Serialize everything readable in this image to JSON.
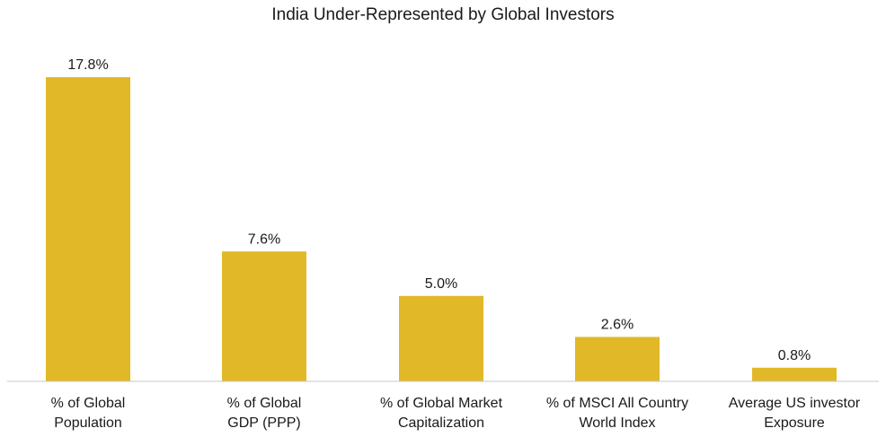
{
  "chart_data": {
    "type": "bar",
    "title": "India Under-Represented by Global Investors",
    "categories": [
      [
        "% of Global",
        "Population"
      ],
      [
        "% of Global",
        "GDP (PPP)"
      ],
      [
        "% of Global Market",
        "Capitalization"
      ],
      [
        "% of MSCI All Country",
        "World Index"
      ],
      [
        "Average US investor",
        "Exposure"
      ]
    ],
    "values": [
      17.8,
      7.6,
      5.0,
      2.6,
      0.8
    ],
    "value_labels": [
      "17.8%",
      "7.6%",
      "5.0%",
      "2.6%",
      "0.8%"
    ],
    "xlabel": "",
    "ylabel": "",
    "ylim": [
      0,
      17.8
    ],
    "grid": false,
    "legend": "none",
    "bar_color": "#E1B827",
    "axis_color": "#c8c8c8"
  }
}
